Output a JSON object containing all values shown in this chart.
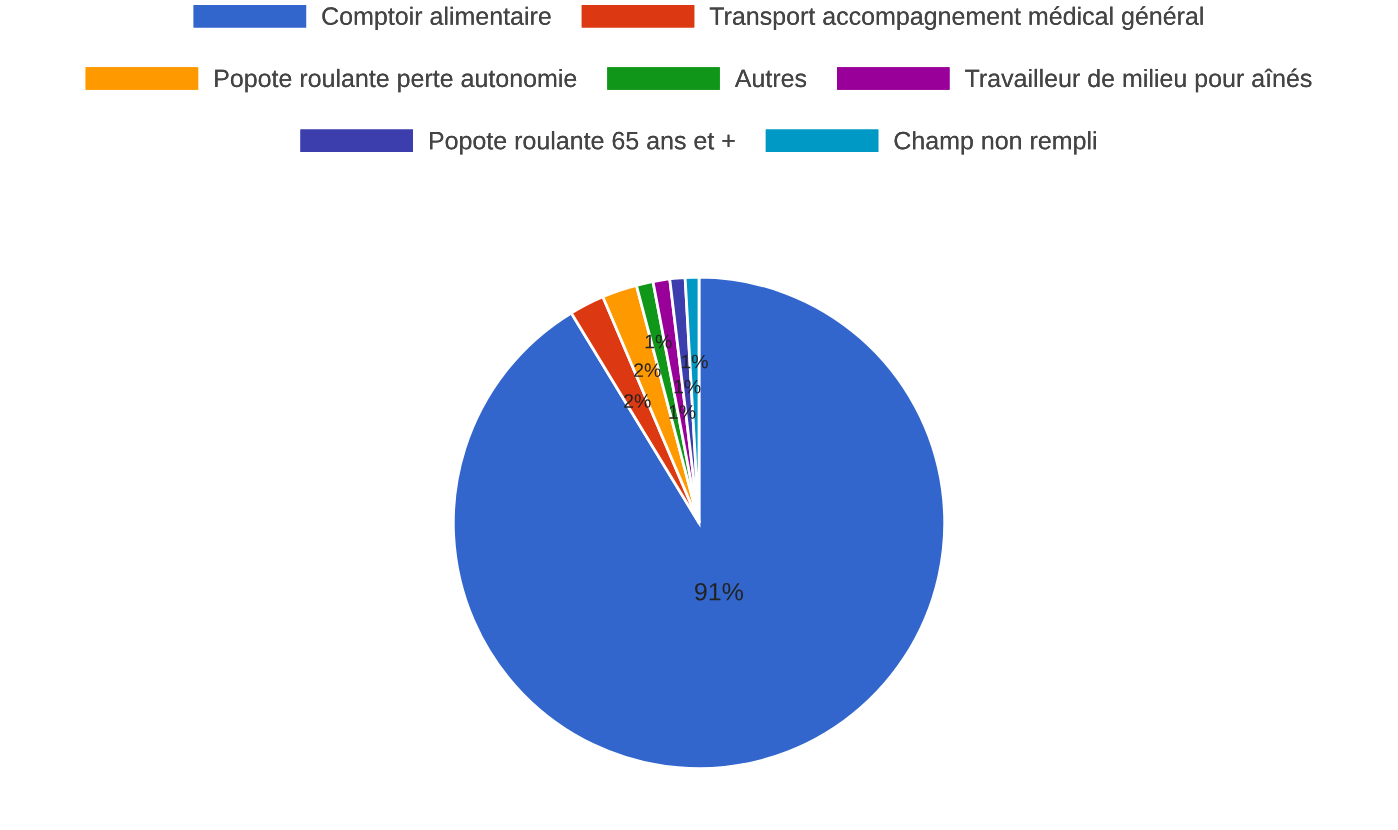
{
  "chart_data": {
    "type": "pie",
    "categories": [
      "Comptoir alimentaire",
      "Transport accompagnement médical général",
      "Popote roulante perte autonomie",
      "Autres",
      "Travailleur de milieu pour aînés",
      "Popote roulante 65 ans et +",
      "Champ non rempli"
    ],
    "values": [
      91.3,
      2.3,
      2.3,
      1.1,
      1.1,
      1.0,
      0.9
    ],
    "value_labels": [
      "91%",
      "2%",
      "2%",
      "1%",
      "1%",
      "1%",
      "1%"
    ],
    "colors": [
      "#3366cc",
      "#dc3912",
      "#ff9900",
      "#109618",
      "#990099",
      "#3b3eac",
      "#0099c6"
    ],
    "legend": "top"
  }
}
